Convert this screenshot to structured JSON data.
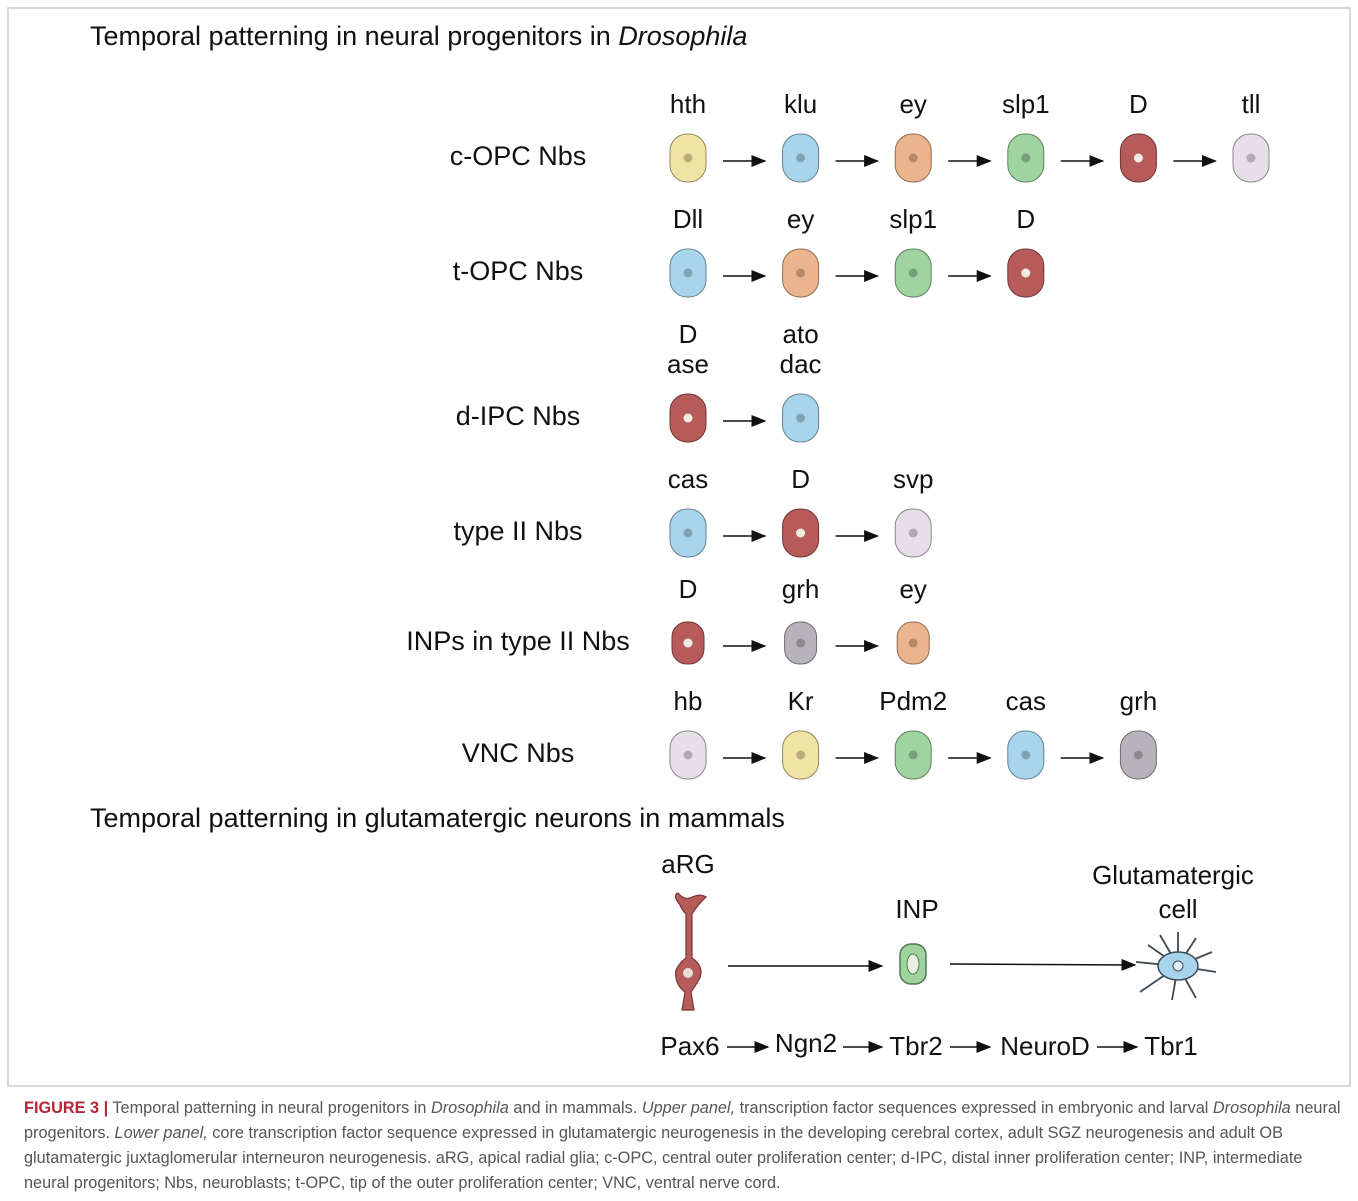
{
  "upper_panel": {
    "title": "Temporal patterning in neural progenitors in ",
    "title_italic": "Drosophila",
    "rows": [
      {
        "label": "c-OPC Nbs",
        "cells": [
          {
            "genes": [
              "hth"
            ],
            "fill": "#f1e3a3"
          },
          {
            "genes": [
              "klu"
            ],
            "fill": "#a9d5ec"
          },
          {
            "genes": [
              "ey"
            ],
            "fill": "#ebb48c"
          },
          {
            "genes": [
              "slp1"
            ],
            "fill": "#9fd39f"
          },
          {
            "genes": [
              "D"
            ],
            "fill": "#b65a5a"
          },
          {
            "genes": [
              "tll"
            ],
            "fill": "#e8dee9"
          }
        ]
      },
      {
        "label": "t-OPC Nbs",
        "cells": [
          {
            "genes": [
              "Dll"
            ],
            "fill": "#a9d5ec"
          },
          {
            "genes": [
              "ey"
            ],
            "fill": "#ebb48c"
          },
          {
            "genes": [
              "slp1"
            ],
            "fill": "#9fd39f"
          },
          {
            "genes": [
              "D"
            ],
            "fill": "#b65a5a"
          }
        ]
      },
      {
        "label": "d-IPC Nbs",
        "cells": [
          {
            "genes": [
              "D",
              "ase"
            ],
            "fill": "#b65a5a"
          },
          {
            "genes": [
              "ato",
              "dac"
            ],
            "fill": "#a9d5ec"
          }
        ]
      },
      {
        "label": "type II Nbs",
        "cells": [
          {
            "genes": [
              "cas"
            ],
            "fill": "#a9d5ec"
          },
          {
            "genes": [
              "D"
            ],
            "fill": "#b65a5a"
          },
          {
            "genes": [
              "svp"
            ],
            "fill": "#e8dee9"
          }
        ]
      },
      {
        "label": "INPs in type II Nbs",
        "cells": [
          {
            "genes": [
              "D"
            ],
            "fill": "#b65a5a"
          },
          {
            "genes": [
              "grh"
            ],
            "fill": "#b8b3ba"
          },
          {
            "genes": [
              "ey"
            ],
            "fill": "#ebb48c"
          }
        ]
      },
      {
        "label": "VNC Nbs",
        "cells": [
          {
            "genes": [
              "hb"
            ],
            "fill": "#e8dee9"
          },
          {
            "genes": [
              "Kr"
            ],
            "fill": "#f1e3a3"
          },
          {
            "genes": [
              "Pdm2"
            ],
            "fill": "#9fd39f"
          },
          {
            "genes": [
              "cas"
            ],
            "fill": "#a9d5ec"
          },
          {
            "genes": [
              "grh"
            ],
            "fill": "#b8b3ba"
          }
        ]
      }
    ]
  },
  "lower_panel": {
    "title": "Temporal patterning in glutamatergic neurons in mammals",
    "cell_labels": [
      "aRG",
      "INP",
      "Glutamatergic",
      "cell"
    ],
    "chain": [
      "Pax6",
      "Ngn2",
      "Tbr2",
      "NeuroD",
      "Tbr1"
    ]
  },
  "caption": [
    {
      "text": "FIGURE 3 |",
      "italic": false,
      "bold": true
    },
    {
      "text": " Temporal patterning in neural progenitors in ",
      "italic": false,
      "bold": false
    },
    {
      "text": "Drosophila",
      "italic": true,
      "bold": false
    },
    {
      "text": " and in mammals. ",
      "italic": false,
      "bold": false
    },
    {
      "text": "Upper panel,",
      "italic": true,
      "bold": false
    },
    {
      "text": " transcription factor sequences expressed in embryonic and larval ",
      "italic": false,
      "bold": false
    },
    {
      "text": "Drosophila",
      "italic": true,
      "bold": false
    },
    {
      "text": " neural progenitors. ",
      "italic": false,
      "bold": false
    },
    {
      "text": "Lower panel,",
      "italic": true,
      "bold": false
    },
    {
      "text": " core transcription factor sequence expressed in glutamatergic neurogenesis in the developing cerebral cortex, adult SGZ neurogenesis and adult OB glutamatergic juxtaglomerular interneuron neurogenesis. aRG, apical radial glia; c-OPC, central outer proliferation center; d-IPC, distal inner proliferation center; INP, intermediate neural progenitors; Nbs, neuroblasts; t-OPC, tip of the outer proliferation center; VNC, ventral nerve cord.",
      "italic": false,
      "bold": false
    }
  ]
}
